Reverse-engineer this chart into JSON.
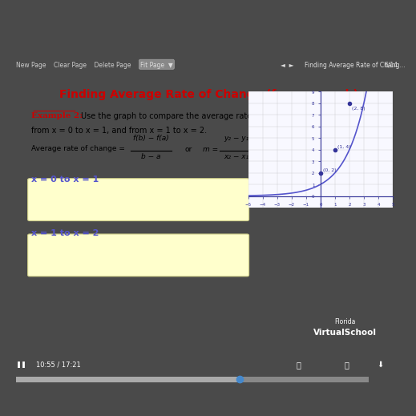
{
  "title": "Finding Average Rate of Change (from a graph)",
  "title_color": "#cc0000",
  "bg_outer": "#4a4a4a",
  "bg_toolbar": "#5a5a5a",
  "bg_content": "#ffffff",
  "bg_boxes": "#ffffcc",
  "example_label": "Example 2:",
  "example_color": "#cc0000",
  "example_text": "  Use the graph to compare the average rate of change\nfrom x = 0 to x = 1, and from x = 1 to x = 2.",
  "formula_text": "Average rate of change = ",
  "formula_frac_num": "f(b) − f(a)",
  "formula_frac_den": "b − a",
  "formula_or": "or",
  "formula_m": "m = ",
  "formula_slope_num": "y₂ − y₁",
  "formula_slope_den": "x₂ − x₁",
  "section1_label": "x = 0 to x = 1",
  "section2_label": "x = 1 to x = 2",
  "curve_color": "#5555cc",
  "point_color": "#333399",
  "points": [
    [
      0,
      2
    ],
    [
      1,
      4
    ],
    [
      2,
      8
    ]
  ],
  "point_labels": [
    "(0, 2)",
    "(1, 4)",
    "(2, 8)"
  ],
  "graph_xlim": [
    -5,
    5
  ],
  "graph_ylim": [
    -1,
    9
  ],
  "watermark_text": "Florida\nVirtualSchool",
  "watermark_bg": "#3399cc",
  "toolbar_text": "Finding Average Rate of Chang...",
  "time_text": "10:55 / 17:21",
  "progress": 0.635
}
